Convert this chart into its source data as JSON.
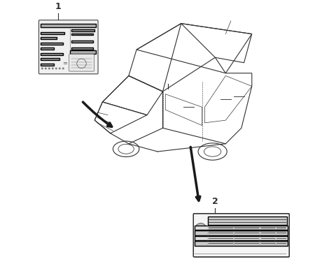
{
  "bg_color": "#ffffff",
  "car_color": "#303030",
  "label_bg": "#f0f0f0",
  "label_border": "#404040",
  "gray_light": "#d0d0d0",
  "gray_mid": "#a0a0a0",
  "gray_dark": "#606060",
  "arrow_color": "#1a1a1a",
  "num_color": "#303030"
}
